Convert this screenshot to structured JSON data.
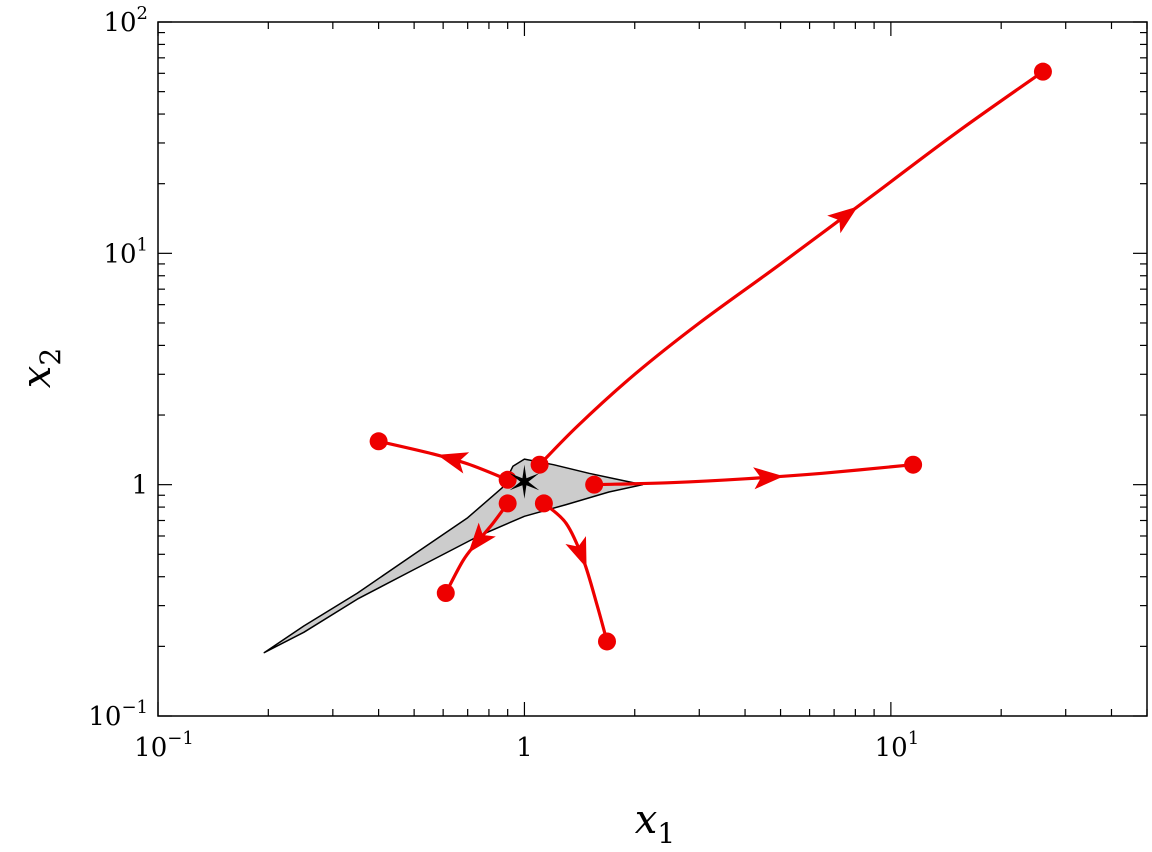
{
  "chart_data": {
    "type": "line",
    "title": "",
    "xlabel": "x",
    "xlabel_sub": "1",
    "ylabel": "x",
    "ylabel_sub": "2",
    "xscale": "log",
    "yscale": "log",
    "xlim": [
      0.1,
      50
    ],
    "ylim": [
      0.1,
      100
    ],
    "grid": false,
    "x_ticks": [
      {
        "base": "10",
        "exp": "−1"
      },
      {
        "base": "1",
        "exp": ""
      },
      {
        "base": "10",
        "exp": "1"
      }
    ],
    "y_ticks": [
      {
        "base": "10",
        "exp": "−1"
      },
      {
        "base": "1",
        "exp": ""
      },
      {
        "base": "10",
        "exp": "1"
      },
      {
        "base": "10",
        "exp": "2"
      }
    ],
    "colors": {
      "trajectory": "#ee0000",
      "region_fill": "#cccccc",
      "region_edge": "#000000",
      "equilibrium": "#000000"
    },
    "equilibrium": {
      "x": 1.0,
      "y": 1.03
    },
    "region": [
      [
        0.195,
        0.188
      ],
      [
        0.25,
        0.245
      ],
      [
        0.35,
        0.34
      ],
      [
        0.5,
        0.5
      ],
      [
        0.7,
        0.72
      ],
      [
        0.87,
        0.97
      ],
      [
        0.93,
        1.2
      ],
      [
        1.0,
        1.29
      ],
      [
        1.2,
        1.22
      ],
      [
        1.5,
        1.12
      ],
      [
        2.1,
        1.0
      ],
      [
        1.7,
        0.93
      ],
      [
        1.3,
        0.82
      ],
      [
        1.0,
        0.73
      ],
      [
        0.75,
        0.6
      ],
      [
        0.5,
        0.43
      ],
      [
        0.35,
        0.32
      ],
      [
        0.25,
        0.23
      ],
      [
        0.195,
        0.188
      ]
    ],
    "trajectories": [
      {
        "start": {
          "x": 1.1,
          "y": 1.22
        },
        "points": [
          [
            1.1,
            1.22
          ],
          [
            1.4,
            1.8
          ],
          [
            2.0,
            3.0
          ],
          [
            3.0,
            5.0
          ],
          [
            5.0,
            9.0
          ],
          [
            9.0,
            18.0
          ],
          [
            15.0,
            33.0
          ],
          [
            26.0,
            61.0
          ]
        ],
        "end": {
          "x": 26.0,
          "y": 61.0
        },
        "arrow_at": 0.62
      },
      {
        "start": {
          "x": 0.9,
          "y": 1.05
        },
        "points": [
          [
            0.9,
            1.05
          ],
          [
            0.7,
            1.23
          ],
          [
            0.55,
            1.37
          ],
          [
            0.4,
            1.54
          ]
        ],
        "end": {
          "x": 0.4,
          "y": 1.54
        },
        "arrow_at": 0.45
      },
      {
        "start": {
          "x": 0.9,
          "y": 0.83
        },
        "points": [
          [
            0.9,
            0.83
          ],
          [
            0.82,
            0.68
          ],
          [
            0.74,
            0.56
          ],
          [
            0.68,
            0.47
          ],
          [
            0.61,
            0.34
          ]
        ],
        "end": {
          "x": 0.61,
          "y": 0.34
        },
        "arrow_at": 0.45
      },
      {
        "start": {
          "x": 1.13,
          "y": 0.83
        },
        "points": [
          [
            1.13,
            0.83
          ],
          [
            1.3,
            0.68
          ],
          [
            1.45,
            0.47
          ],
          [
            1.58,
            0.3
          ],
          [
            1.68,
            0.21
          ]
        ],
        "end": {
          "x": 1.68,
          "y": 0.21
        },
        "arrow_at": 0.42
      },
      {
        "start": {
          "x": 1.55,
          "y": 1.0
        },
        "points": [
          [
            1.55,
            1.0
          ],
          [
            2.5,
            1.02
          ],
          [
            4.0,
            1.06
          ],
          [
            6.5,
            1.12
          ],
          [
            11.5,
            1.22
          ]
        ],
        "end": {
          "x": 11.5,
          "y": 1.22
        },
        "arrow_at": 0.55
      }
    ]
  }
}
